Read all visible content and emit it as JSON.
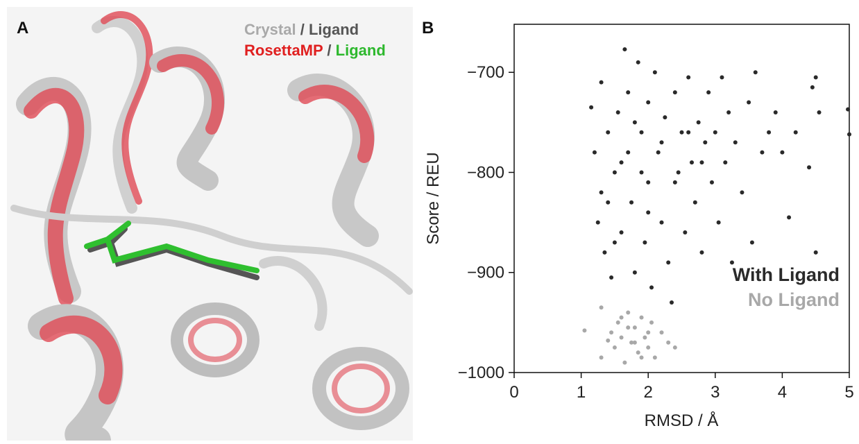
{
  "panel_a": {
    "label": "A",
    "line1": [
      "Crystal",
      "/",
      "Ligand"
    ],
    "line2": [
      "RosettaMP",
      "/",
      "Ligand"
    ]
  },
  "chart_data": {
    "type": "scatter",
    "panel_label": "B",
    "xlabel": "RMSD / Å",
    "ylabel": "Score / REU",
    "xlim": [
      0,
      5
    ],
    "ylim": [
      -1000,
      -652
    ],
    "xticks": [
      0,
      1,
      2,
      3,
      4,
      5
    ],
    "yticks": [
      {
        "value": -700,
        "label": "−700"
      },
      {
        "value": -800,
        "label": "−800"
      },
      {
        "value": -900,
        "label": "−900"
      },
      {
        "value": -1000,
        "label": "−1000"
      }
    ],
    "legend": "lower right",
    "series": [
      {
        "name": "With Ligand",
        "color": "#2a2a2a",
        "x": [
          1.15,
          1.2,
          1.25,
          1.3,
          1.3,
          1.35,
          1.4,
          1.45,
          1.5,
          1.55,
          1.6,
          1.65,
          1.7,
          1.75,
          1.8,
          1.85,
          1.9,
          1.95,
          2.0,
          2.0,
          2.05,
          2.1,
          2.15,
          2.2,
          2.25,
          2.3,
          2.35,
          2.4,
          2.45,
          2.5,
          2.55,
          2.6,
          2.65,
          2.7,
          2.75,
          2.8,
          2.85,
          2.9,
          2.95,
          3.0,
          3.05,
          3.1,
          3.15,
          3.2,
          3.25,
          3.3,
          3.4,
          3.5,
          3.55,
          3.6,
          3.7,
          3.8,
          3.9,
          4.0,
          4.1,
          4.2,
          4.4,
          4.45,
          4.5,
          4.5,
          4.55,
          4.98,
          5.0,
          1.4,
          1.6,
          1.8,
          2.0,
          2.2,
          1.5,
          1.7,
          1.9,
          2.4,
          2.6,
          2.8
        ],
        "values": [
          -735,
          -780,
          -850,
          -710,
          -820,
          -880,
          -760,
          -905,
          -800,
          -740,
          -860,
          -677,
          -780,
          -830,
          -900,
          -690,
          -760,
          -870,
          -730,
          -810,
          -915,
          -700,
          -780,
          -850,
          -745,
          -890,
          -930,
          -720,
          -800,
          -760,
          -860,
          -705,
          -790,
          -830,
          -750,
          -880,
          -770,
          -720,
          -810,
          -760,
          -850,
          -705,
          -790,
          -740,
          -890,
          -770,
          -820,
          -730,
          -870,
          -700,
          -780,
          -760,
          -740,
          -780,
          -845,
          -760,
          -795,
          -715,
          -880,
          -705,
          -740,
          -737,
          -762,
          -830,
          -790,
          -750,
          -840,
          -770,
          -870,
          -720,
          -800,
          -810,
          -760,
          -790
        ]
      },
      {
        "name": "No Ligand",
        "color": "#a8a8a8",
        "x": [
          1.05,
          1.3,
          1.3,
          1.45,
          1.5,
          1.55,
          1.6,
          1.65,
          1.7,
          1.75,
          1.8,
          1.85,
          1.9,
          1.95,
          2.0,
          2.05,
          2.1,
          2.2,
          2.3,
          2.4,
          1.4,
          1.6,
          1.8,
          2.0,
          1.7,
          1.9
        ],
        "values": [
          -958,
          -935,
          -985,
          -960,
          -975,
          -950,
          -965,
          -990,
          -940,
          -970,
          -955,
          -980,
          -945,
          -965,
          -975,
          -950,
          -985,
          -960,
          -970,
          -975,
          -968,
          -945,
          -970,
          -960,
          -955,
          -985
        ]
      }
    ]
  }
}
